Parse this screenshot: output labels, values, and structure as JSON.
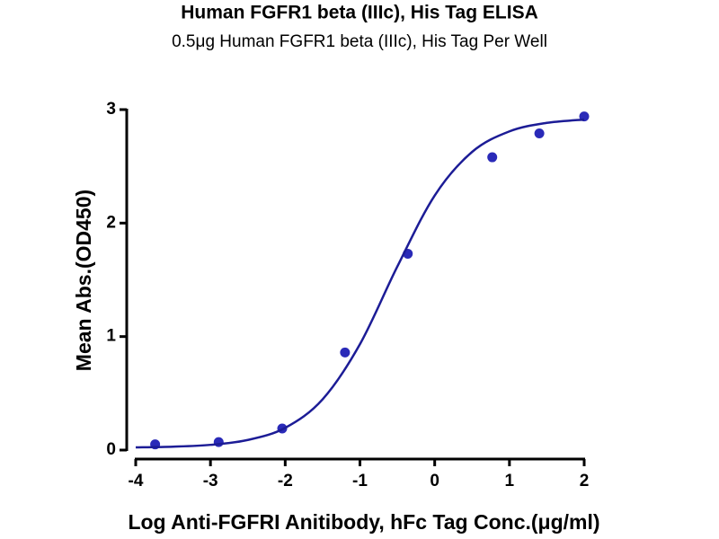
{
  "chart_data": {
    "type": "scatter",
    "title": "Human FGFR1 beta (IIIc), His Tag ELISA",
    "subtitle": "0.5μg Human FGFR1 beta (IIIc), His Tag Per Well",
    "x_label": "Log Anti-FGFRI Anitibody, hFc Tag Conc.(μg/ml)",
    "y_label": "Mean Abs.(OD450)",
    "xlim": [
      -4,
      2
    ],
    "xticks": [
      -4,
      -3,
      -2,
      -1,
      0,
      1,
      2
    ],
    "ylim": [
      0,
      3
    ],
    "yticks": [
      0,
      1,
      2,
      3
    ],
    "series": [
      {
        "type": "scatter",
        "color": "#2a2ab8",
        "x": [
          -3.74,
          -2.89,
          -2.04,
          -1.2,
          -0.36,
          0.77,
          1.4,
          2.0
        ],
        "values": [
          0.05,
          0.07,
          0.19,
          0.86,
          1.73,
          2.58,
          2.79,
          2.94
        ]
      },
      {
        "type": "line",
        "color": "#1c1c96",
        "x": [
          -4,
          -3.5,
          -3,
          -2.5,
          -2,
          -1.5,
          -1,
          -0.5,
          0,
          0.5,
          1,
          1.5,
          2
        ],
        "values": [
          0.024,
          0.03,
          0.046,
          0.089,
          0.196,
          0.447,
          0.933,
          1.617,
          2.243,
          2.627,
          2.808,
          2.883,
          2.912
        ]
      }
    ]
  }
}
